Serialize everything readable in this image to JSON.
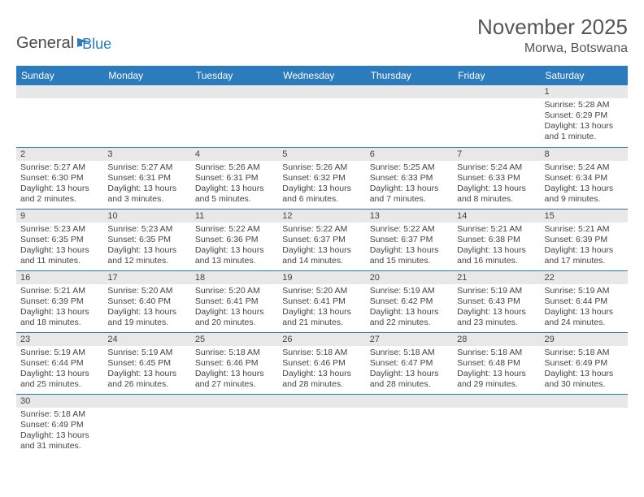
{
  "logo": {
    "text1": "General",
    "text2": "Blue"
  },
  "title": "November 2025",
  "location": "Morwa, Botswana",
  "colors": {
    "header_bg": "#2b7bbd",
    "header_text": "#ffffff",
    "daynum_bg": "#e8e8e8",
    "grid_line": "#2b7bbd",
    "body_text": "#444444",
    "page_bg": "#ffffff"
  },
  "typography": {
    "title_fontsize": 26,
    "location_fontsize": 16,
    "day_header_fontsize": 12,
    "daynum_fontsize": 11,
    "cell_fontsize": 10.5
  },
  "day_headers": [
    "Sunday",
    "Monday",
    "Tuesday",
    "Wednesday",
    "Thursday",
    "Friday",
    "Saturday"
  ],
  "weeks": [
    [
      {
        "day": "",
        "sunrise": "",
        "sunset": "",
        "daylight": ""
      },
      {
        "day": "",
        "sunrise": "",
        "sunset": "",
        "daylight": ""
      },
      {
        "day": "",
        "sunrise": "",
        "sunset": "",
        "daylight": ""
      },
      {
        "day": "",
        "sunrise": "",
        "sunset": "",
        "daylight": ""
      },
      {
        "day": "",
        "sunrise": "",
        "sunset": "",
        "daylight": ""
      },
      {
        "day": "",
        "sunrise": "",
        "sunset": "",
        "daylight": ""
      },
      {
        "day": "1",
        "sunrise": "Sunrise: 5:28 AM",
        "sunset": "Sunset: 6:29 PM",
        "daylight": "Daylight: 13 hours and 1 minute."
      }
    ],
    [
      {
        "day": "2",
        "sunrise": "Sunrise: 5:27 AM",
        "sunset": "Sunset: 6:30 PM",
        "daylight": "Daylight: 13 hours and 2 minutes."
      },
      {
        "day": "3",
        "sunrise": "Sunrise: 5:27 AM",
        "sunset": "Sunset: 6:31 PM",
        "daylight": "Daylight: 13 hours and 3 minutes."
      },
      {
        "day": "4",
        "sunrise": "Sunrise: 5:26 AM",
        "sunset": "Sunset: 6:31 PM",
        "daylight": "Daylight: 13 hours and 5 minutes."
      },
      {
        "day": "5",
        "sunrise": "Sunrise: 5:26 AM",
        "sunset": "Sunset: 6:32 PM",
        "daylight": "Daylight: 13 hours and 6 minutes."
      },
      {
        "day": "6",
        "sunrise": "Sunrise: 5:25 AM",
        "sunset": "Sunset: 6:33 PM",
        "daylight": "Daylight: 13 hours and 7 minutes."
      },
      {
        "day": "7",
        "sunrise": "Sunrise: 5:24 AM",
        "sunset": "Sunset: 6:33 PM",
        "daylight": "Daylight: 13 hours and 8 minutes."
      },
      {
        "day": "8",
        "sunrise": "Sunrise: 5:24 AM",
        "sunset": "Sunset: 6:34 PM",
        "daylight": "Daylight: 13 hours and 9 minutes."
      }
    ],
    [
      {
        "day": "9",
        "sunrise": "Sunrise: 5:23 AM",
        "sunset": "Sunset: 6:35 PM",
        "daylight": "Daylight: 13 hours and 11 minutes."
      },
      {
        "day": "10",
        "sunrise": "Sunrise: 5:23 AM",
        "sunset": "Sunset: 6:35 PM",
        "daylight": "Daylight: 13 hours and 12 minutes."
      },
      {
        "day": "11",
        "sunrise": "Sunrise: 5:22 AM",
        "sunset": "Sunset: 6:36 PM",
        "daylight": "Daylight: 13 hours and 13 minutes."
      },
      {
        "day": "12",
        "sunrise": "Sunrise: 5:22 AM",
        "sunset": "Sunset: 6:37 PM",
        "daylight": "Daylight: 13 hours and 14 minutes."
      },
      {
        "day": "13",
        "sunrise": "Sunrise: 5:22 AM",
        "sunset": "Sunset: 6:37 PM",
        "daylight": "Daylight: 13 hours and 15 minutes."
      },
      {
        "day": "14",
        "sunrise": "Sunrise: 5:21 AM",
        "sunset": "Sunset: 6:38 PM",
        "daylight": "Daylight: 13 hours and 16 minutes."
      },
      {
        "day": "15",
        "sunrise": "Sunrise: 5:21 AM",
        "sunset": "Sunset: 6:39 PM",
        "daylight": "Daylight: 13 hours and 17 minutes."
      }
    ],
    [
      {
        "day": "16",
        "sunrise": "Sunrise: 5:21 AM",
        "sunset": "Sunset: 6:39 PM",
        "daylight": "Daylight: 13 hours and 18 minutes."
      },
      {
        "day": "17",
        "sunrise": "Sunrise: 5:20 AM",
        "sunset": "Sunset: 6:40 PM",
        "daylight": "Daylight: 13 hours and 19 minutes."
      },
      {
        "day": "18",
        "sunrise": "Sunrise: 5:20 AM",
        "sunset": "Sunset: 6:41 PM",
        "daylight": "Daylight: 13 hours and 20 minutes."
      },
      {
        "day": "19",
        "sunrise": "Sunrise: 5:20 AM",
        "sunset": "Sunset: 6:41 PM",
        "daylight": "Daylight: 13 hours and 21 minutes."
      },
      {
        "day": "20",
        "sunrise": "Sunrise: 5:19 AM",
        "sunset": "Sunset: 6:42 PM",
        "daylight": "Daylight: 13 hours and 22 minutes."
      },
      {
        "day": "21",
        "sunrise": "Sunrise: 5:19 AM",
        "sunset": "Sunset: 6:43 PM",
        "daylight": "Daylight: 13 hours and 23 minutes."
      },
      {
        "day": "22",
        "sunrise": "Sunrise: 5:19 AM",
        "sunset": "Sunset: 6:44 PM",
        "daylight": "Daylight: 13 hours and 24 minutes."
      }
    ],
    [
      {
        "day": "23",
        "sunrise": "Sunrise: 5:19 AM",
        "sunset": "Sunset: 6:44 PM",
        "daylight": "Daylight: 13 hours and 25 minutes."
      },
      {
        "day": "24",
        "sunrise": "Sunrise: 5:19 AM",
        "sunset": "Sunset: 6:45 PM",
        "daylight": "Daylight: 13 hours and 26 minutes."
      },
      {
        "day": "25",
        "sunrise": "Sunrise: 5:18 AM",
        "sunset": "Sunset: 6:46 PM",
        "daylight": "Daylight: 13 hours and 27 minutes."
      },
      {
        "day": "26",
        "sunrise": "Sunrise: 5:18 AM",
        "sunset": "Sunset: 6:46 PM",
        "daylight": "Daylight: 13 hours and 28 minutes."
      },
      {
        "day": "27",
        "sunrise": "Sunrise: 5:18 AM",
        "sunset": "Sunset: 6:47 PM",
        "daylight": "Daylight: 13 hours and 28 minutes."
      },
      {
        "day": "28",
        "sunrise": "Sunrise: 5:18 AM",
        "sunset": "Sunset: 6:48 PM",
        "daylight": "Daylight: 13 hours and 29 minutes."
      },
      {
        "day": "29",
        "sunrise": "Sunrise: 5:18 AM",
        "sunset": "Sunset: 6:49 PM",
        "daylight": "Daylight: 13 hours and 30 minutes."
      }
    ],
    [
      {
        "day": "30",
        "sunrise": "Sunrise: 5:18 AM",
        "sunset": "Sunset: 6:49 PM",
        "daylight": "Daylight: 13 hours and 31 minutes."
      },
      {
        "day": "",
        "sunrise": "",
        "sunset": "",
        "daylight": ""
      },
      {
        "day": "",
        "sunrise": "",
        "sunset": "",
        "daylight": ""
      },
      {
        "day": "",
        "sunrise": "",
        "sunset": "",
        "daylight": ""
      },
      {
        "day": "",
        "sunrise": "",
        "sunset": "",
        "daylight": ""
      },
      {
        "day": "",
        "sunrise": "",
        "sunset": "",
        "daylight": ""
      },
      {
        "day": "",
        "sunrise": "",
        "sunset": "",
        "daylight": ""
      }
    ]
  ]
}
